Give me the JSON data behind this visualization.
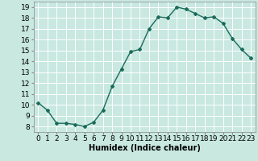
{
  "x": [
    0,
    1,
    2,
    3,
    4,
    5,
    6,
    7,
    8,
    9,
    10,
    11,
    12,
    13,
    14,
    15,
    16,
    17,
    18,
    19,
    20,
    21,
    22,
    23
  ],
  "y": [
    10.2,
    9.5,
    8.3,
    8.3,
    8.2,
    8.0,
    8.4,
    9.5,
    11.7,
    13.3,
    14.9,
    15.1,
    17.0,
    18.1,
    18.0,
    19.0,
    18.8,
    18.4,
    18.0,
    18.1,
    17.5,
    16.1,
    15.1,
    14.3
  ],
  "line_color": "#1a6b5a",
  "marker": "D",
  "marker_size": 2.0,
  "bg_color": "#c8e8e0",
  "grid_color": "#ffffff",
  "xlabel": "Humidex (Indice chaleur)",
  "xlim": [
    -0.5,
    23.5
  ],
  "ylim": [
    7.5,
    19.5
  ],
  "yticks": [
    8,
    9,
    10,
    11,
    12,
    13,
    14,
    15,
    16,
    17,
    18,
    19
  ],
  "xticks": [
    0,
    1,
    2,
    3,
    4,
    5,
    6,
    7,
    8,
    9,
    10,
    11,
    12,
    13,
    14,
    15,
    16,
    17,
    18,
    19,
    20,
    21,
    22,
    23
  ],
  "xtick_labels": [
    "0",
    "1",
    "2",
    "3",
    "4",
    "5",
    "6",
    "7",
    "8",
    "9",
    "10",
    "11",
    "12",
    "13",
    "14",
    "15",
    "16",
    "17",
    "18",
    "19",
    "20",
    "21",
    "22",
    "23"
  ],
  "xlabel_fontsize": 7,
  "tick_fontsize": 6.5,
  "line_width": 1.0
}
